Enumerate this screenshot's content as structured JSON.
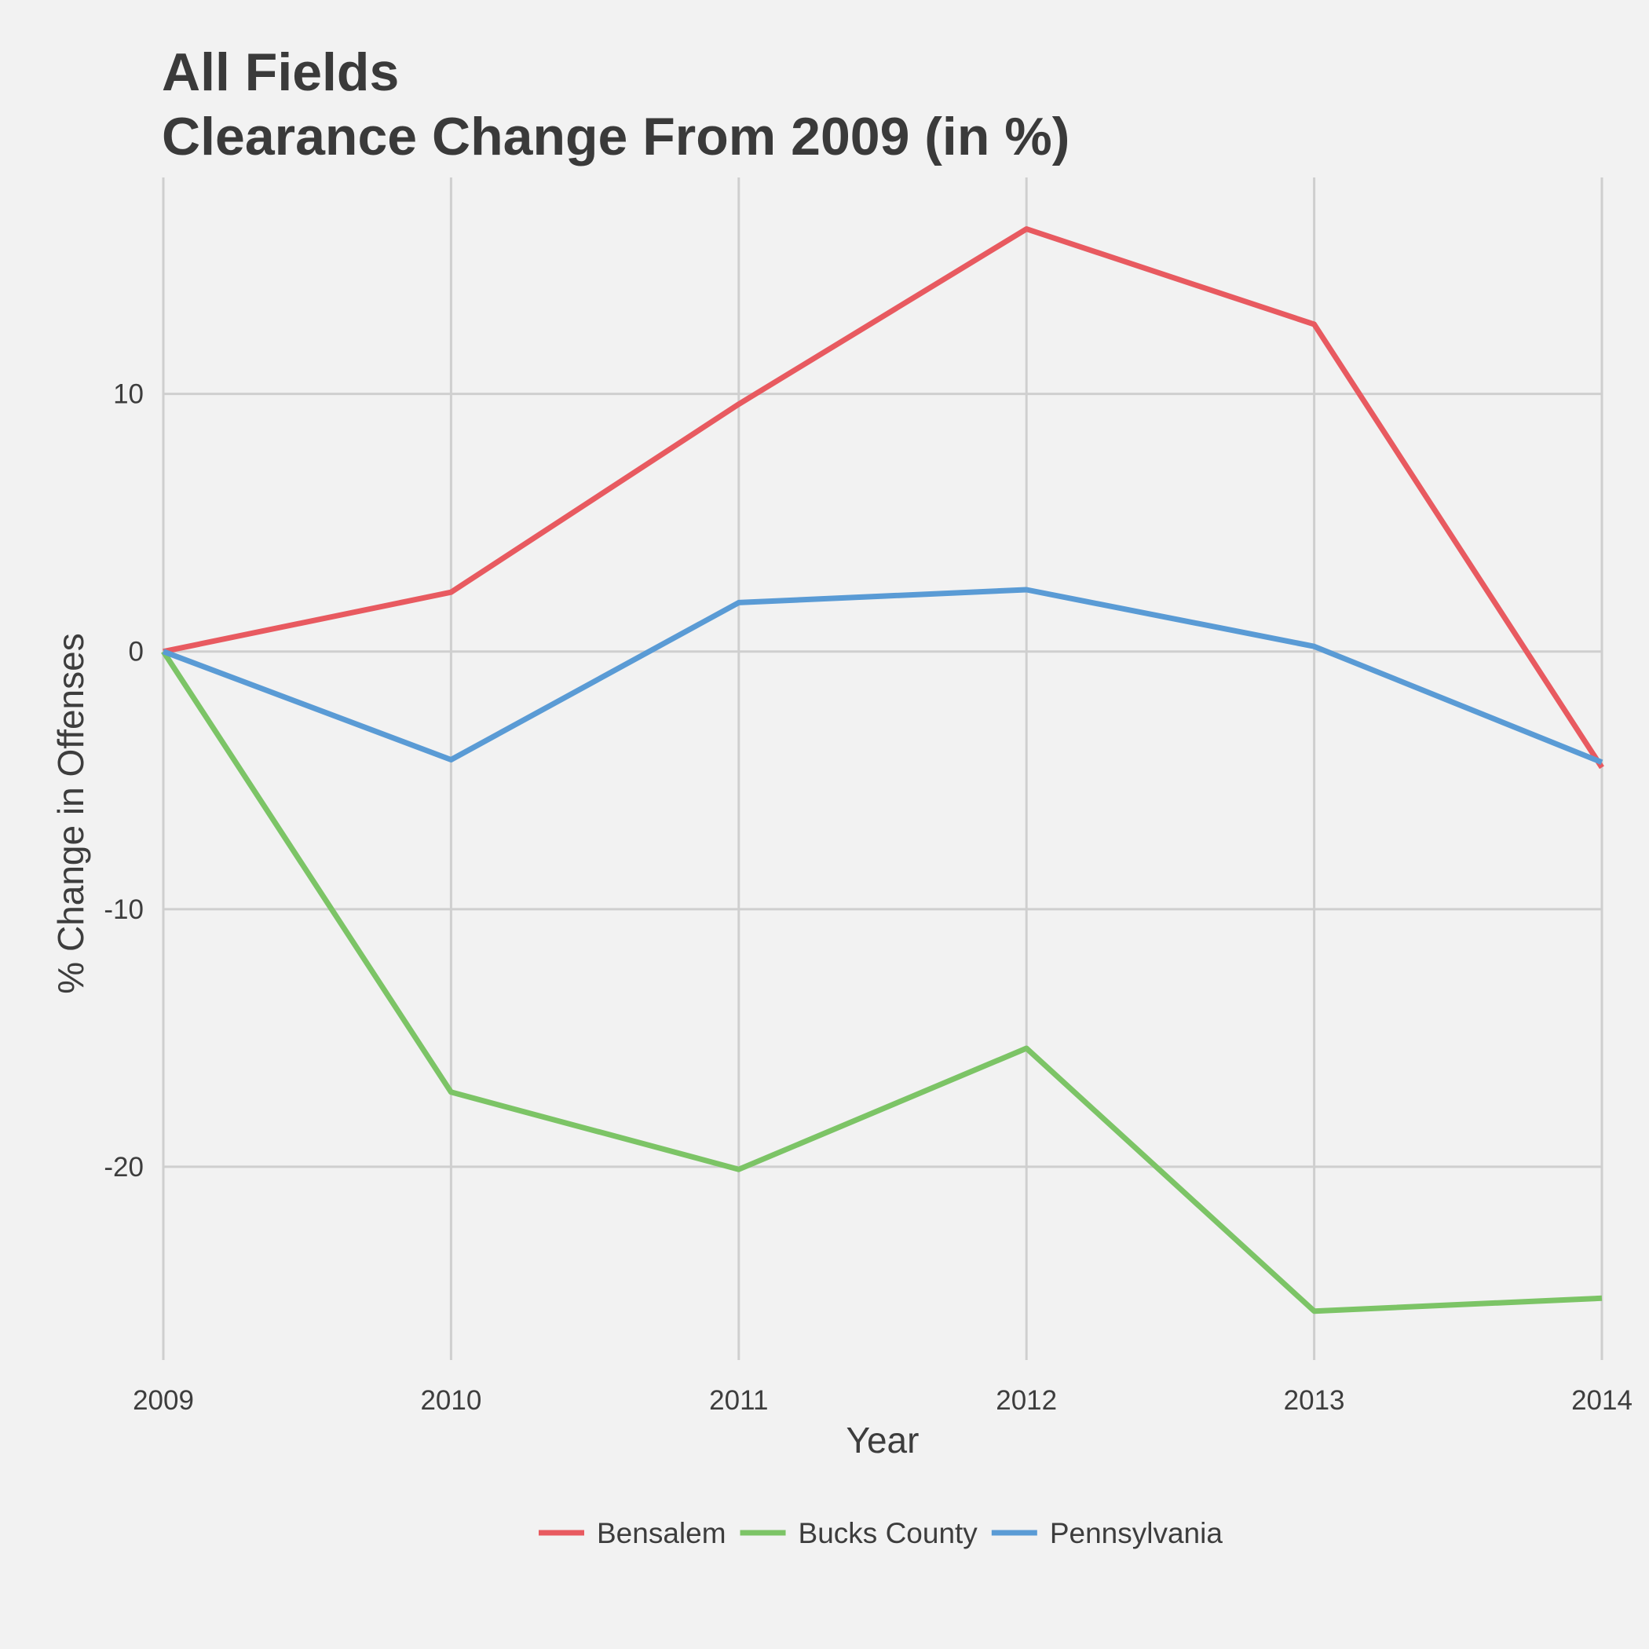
{
  "chart_data": {
    "type": "line",
    "title": "All Fields",
    "subtitle": "Clearance Change From 2009 (in %)",
    "xlabel": "Year",
    "ylabel": "% Change in Offenses",
    "x": [
      2009,
      2010,
      2011,
      2012,
      2013,
      2014
    ],
    "x_tick_labels": [
      "2009",
      "2010",
      "2011",
      "2012",
      "2013",
      "2014"
    ],
    "y_ticks": [
      10,
      0,
      -10,
      -20
    ],
    "y_tick_labels": [
      "10",
      "0",
      "-10",
      "-20"
    ],
    "xlim": [
      2009,
      2014
    ],
    "ylim": [
      -27.5,
      18.4
    ],
    "grid": true,
    "legend_position": "bottom",
    "series": [
      {
        "name": "Bensalem",
        "color": "#e85a60",
        "values": [
          0,
          2.3,
          9.6,
          16.4,
          12.7,
          -4.5
        ]
      },
      {
        "name": "Bucks County",
        "color": "#7cc466",
        "values": [
          0,
          -17.1,
          -20.1,
          -15.4,
          -25.6,
          -25.1
        ]
      },
      {
        "name": "Pennsylvania",
        "color": "#5a9bd5",
        "values": [
          0,
          -4.2,
          1.9,
          2.4,
          0.2,
          -4.3
        ]
      }
    ]
  }
}
